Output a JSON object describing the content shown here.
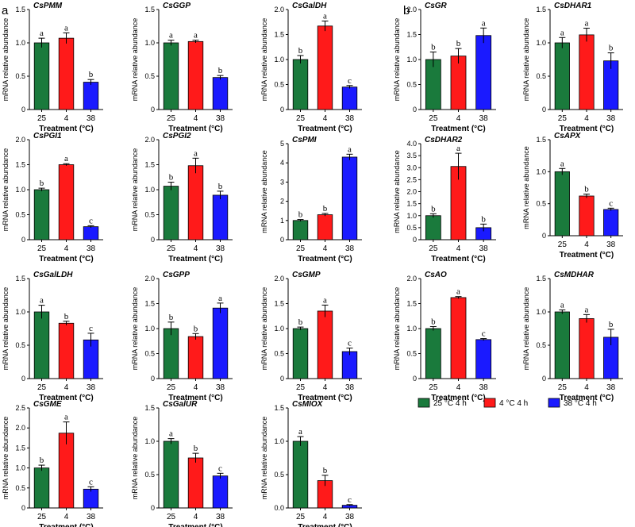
{
  "panel_labels": {
    "a": "a",
    "b": "b"
  },
  "legend": [
    {
      "label": "25 °C 4 h",
      "color": "#1a7a3c"
    },
    {
      "label": "4 °C 4 h",
      "color": "#ff1a1a"
    },
    {
      "label": "38 °C 4 h",
      "color": "#1a1aff"
    }
  ],
  "chart_data": [
    {
      "id": "CsPMM",
      "type": "bar",
      "title": "CsPMM",
      "categories": [
        "25",
        "4",
        "38"
      ],
      "values": [
        1.0,
        1.07,
        0.41
      ],
      "errors": [
        0.07,
        0.08,
        0.04
      ],
      "letters": [
        "a",
        "a",
        "b"
      ],
      "ylim": [
        0,
        1.5
      ],
      "yticks": [
        "0",
        "0.5",
        "1.0",
        "1.5"
      ],
      "xlabel": "Treatment (°C)",
      "ylabel": "mRNA relative abundance"
    },
    {
      "id": "CsGGP",
      "type": "bar",
      "title": "CsGGP",
      "categories": [
        "25",
        "4",
        "38"
      ],
      "values": [
        1.0,
        1.02,
        0.48
      ],
      "errors": [
        0.04,
        0.02,
        0.03
      ],
      "letters": [
        "a",
        "a",
        "b"
      ],
      "ylim": [
        0,
        1.5
      ],
      "yticks": [
        "0",
        "0.5",
        "1.0",
        "1.5"
      ],
      "xlabel": "Treatment (°C)",
      "ylabel": "mRNA relative abundance"
    },
    {
      "id": "CsGalDH",
      "type": "bar",
      "title": "CsGalDH",
      "categories": [
        "25",
        "4",
        "38"
      ],
      "values": [
        1.0,
        1.67,
        0.45
      ],
      "errors": [
        0.08,
        0.1,
        0.03
      ],
      "letters": [
        "b",
        "a",
        "c"
      ],
      "ylim": [
        0,
        2.0
      ],
      "yticks": [
        "0",
        "0.5",
        "1.0",
        "1.5",
        "2.0"
      ],
      "xlabel": "Treatment (°C)",
      "ylabel": "mRNA relative abundance"
    },
    {
      "id": "CsGR",
      "type": "bar",
      "title": "CsGR",
      "categories": [
        "25",
        "4",
        "38"
      ],
      "values": [
        1.0,
        1.07,
        1.48
      ],
      "errors": [
        0.15,
        0.15,
        0.15
      ],
      "letters": [
        "b",
        "b",
        "a"
      ],
      "ylim": [
        0,
        2.0
      ],
      "yticks": [
        "0",
        "0.5",
        "1.0",
        "1.5",
        "2.0"
      ],
      "xlabel": "Treatment (°C)",
      "ylabel": "mRNA relative abundance"
    },
    {
      "id": "CsDHAR1",
      "type": "bar",
      "title": "CsDHAR1",
      "categories": [
        "25",
        "4",
        "38"
      ],
      "values": [
        1.0,
        1.12,
        0.73
      ],
      "errors": [
        0.08,
        0.1,
        0.12
      ],
      "letters": [
        "a",
        "a",
        "b"
      ],
      "ylim": [
        0,
        1.5
      ],
      "yticks": [
        "0",
        "0.5",
        "1.0",
        "1.5"
      ],
      "xlabel": "Treatment (°C)",
      "ylabel": "mRNA relative abundance"
    },
    {
      "id": "CsPGI1",
      "type": "bar",
      "title": "CsPGI1",
      "categories": [
        "25",
        "4",
        "38"
      ],
      "values": [
        1.0,
        1.5,
        0.26
      ],
      "errors": [
        0.03,
        0.02,
        0.02
      ],
      "letters": [
        "b",
        "a",
        "c"
      ],
      "ylim": [
        0,
        2.0
      ],
      "yticks": [
        "0",
        "0.5",
        "1.0",
        "1.5",
        "2.0"
      ],
      "xlabel": "Treatment (°C)",
      "ylabel": "mRNA relative abundance"
    },
    {
      "id": "CsPGI2",
      "type": "bar",
      "title": "CsPGI2",
      "categories": [
        "25",
        "4",
        "38"
      ],
      "values": [
        1.07,
        1.48,
        0.89
      ],
      "errors": [
        0.08,
        0.15,
        0.08
      ],
      "letters": [
        "b",
        "a",
        "b"
      ],
      "ylim": [
        0,
        2.0
      ],
      "yticks": [
        "0",
        "0.5",
        "1.0",
        "1.5",
        "2.0"
      ],
      "xlabel": "Treatment (°C)",
      "ylabel": "mRNA relative abundance"
    },
    {
      "id": "CsPMI",
      "type": "bar",
      "title": "CsPMI",
      "categories": [
        "25",
        "4",
        "38"
      ],
      "values": [
        1.0,
        1.3,
        4.3
      ],
      "errors": [
        0.05,
        0.07,
        0.15
      ],
      "letters": [
        "b",
        "b",
        "a"
      ],
      "ylim": [
        0,
        5
      ],
      "yticks": [
        "0",
        "1",
        "2",
        "3",
        "4",
        "5"
      ],
      "xlabel": "Treatment (°C)",
      "ylabel": "mRNA relative abundance"
    },
    {
      "id": "CsDHAR2",
      "type": "bar",
      "title": "CsDHAR2",
      "categories": [
        "25",
        "4",
        "38"
      ],
      "values": [
        1.0,
        3.05,
        0.5
      ],
      "errors": [
        0.08,
        0.55,
        0.15
      ],
      "letters": [
        "b",
        "a",
        "b"
      ],
      "ylim": [
        0,
        4.0
      ],
      "yticks": [
        "0",
        "0.5",
        "1.0",
        "1.5",
        "2.0",
        "2.5",
        "3.0",
        "3.5",
        "4.0"
      ],
      "xlabel": "Treatment (°C)",
      "ylabel": "mRNA relative abundance"
    },
    {
      "id": "CsAPX",
      "type": "bar",
      "title": "CsAPX",
      "categories": [
        "25",
        "4",
        "38"
      ],
      "values": [
        1.0,
        0.62,
        0.41
      ],
      "errors": [
        0.05,
        0.03,
        0.02
      ],
      "letters": [
        "a",
        "b",
        "c"
      ],
      "ylim": [
        0,
        1.5
      ],
      "yticks": [
        "0",
        "0.5",
        "1.0",
        "1.5"
      ],
      "xlabel": "Treatment (°C)",
      "ylabel": "mRNA relative abundance"
    },
    {
      "id": "CsGalLDH",
      "type": "bar",
      "title": "CsGalLDH",
      "categories": [
        "25",
        "4",
        "38"
      ],
      "values": [
        1.0,
        0.83,
        0.58
      ],
      "errors": [
        0.1,
        0.03,
        0.1
      ],
      "letters": [
        "a",
        "b",
        "c"
      ],
      "ylim": [
        0,
        1.5
      ],
      "yticks": [
        "0",
        "0.5",
        "1.0",
        "1.5"
      ],
      "xlabel": "Treatment (°C)",
      "ylabel": "mRNA relative abundance"
    },
    {
      "id": "CsGPP",
      "type": "bar",
      "title": "CsGPP",
      "categories": [
        "25",
        "4",
        "38"
      ],
      "values": [
        1.0,
        0.84,
        1.41
      ],
      "errors": [
        0.13,
        0.06,
        0.1
      ],
      "letters": [
        "b",
        "b",
        "a"
      ],
      "ylim": [
        0,
        2.0
      ],
      "yticks": [
        "0",
        "0.5",
        "1.0",
        "1.5",
        "2.0"
      ],
      "xlabel": "Treatment (°C)",
      "ylabel": "mRNA relative abundance"
    },
    {
      "id": "CsGMP",
      "type": "bar",
      "title": "CsGMP",
      "categories": [
        "25",
        "4",
        "38"
      ],
      "values": [
        1.0,
        1.35,
        0.54
      ],
      "errors": [
        0.03,
        0.12,
        0.07
      ],
      "letters": [
        "b",
        "a",
        "c"
      ],
      "ylim": [
        0,
        2.0
      ],
      "yticks": [
        "0",
        "0.5",
        "1.0",
        "1.5",
        "2.0"
      ],
      "xlabel": "Treatment (°C)",
      "ylabel": "mRNA relative abundance"
    },
    {
      "id": "CsAO",
      "type": "bar",
      "title": "CsAO",
      "categories": [
        "25",
        "4",
        "38"
      ],
      "values": [
        1.0,
        1.62,
        0.78
      ],
      "errors": [
        0.04,
        0.02,
        0.02
      ],
      "letters": [
        "b",
        "a",
        "c"
      ],
      "ylim": [
        0,
        2.0
      ],
      "yticks": [
        "0",
        "0.5",
        "1.0",
        "1.5",
        "2.0"
      ],
      "xlabel": "Treatment (°C)",
      "ylabel": "mRNA relative abundance"
    },
    {
      "id": "CsMDHAR",
      "type": "bar",
      "title": "CsMDHAR",
      "categories": [
        "25",
        "4",
        "38"
      ],
      "values": [
        1.0,
        0.9,
        0.62
      ],
      "errors": [
        0.03,
        0.06,
        0.12
      ],
      "letters": [
        "a",
        "a",
        "b"
      ],
      "ylim": [
        0,
        1.5
      ],
      "yticks": [
        "0",
        "0.5",
        "1.0",
        "1.5"
      ],
      "xlabel": "Treatment (°C)",
      "ylabel": "mRNA relative abundance"
    },
    {
      "id": "CsGME",
      "type": "bar",
      "title": "CsGME",
      "categories": [
        "25",
        "4",
        "38"
      ],
      "values": [
        1.0,
        1.87,
        0.47
      ],
      "errors": [
        0.07,
        0.28,
        0.06
      ],
      "letters": [
        "b",
        "a",
        "c"
      ],
      "ylim": [
        0,
        2.5
      ],
      "yticks": [
        "0",
        "0.5",
        "1.0",
        "1.5",
        "2.0",
        "2.5"
      ],
      "xlabel": "Treatment (°C)",
      "ylabel": "mRNA relative abundance"
    },
    {
      "id": "CsGalUR",
      "type": "bar",
      "title": "CsGalUR",
      "categories": [
        "25",
        "4",
        "38"
      ],
      "values": [
        1.0,
        0.75,
        0.48
      ],
      "errors": [
        0.04,
        0.07,
        0.04
      ],
      "letters": [
        "a",
        "b",
        "c"
      ],
      "ylim": [
        0,
        1.5
      ],
      "yticks": [
        "0",
        "0.5",
        "1.0",
        "1.5"
      ],
      "xlabel": "Treatment (°C)",
      "ylabel": "mRNA relative abundance"
    },
    {
      "id": "CsMIOX",
      "type": "bar",
      "title": "CsMIOX",
      "categories": [
        "25",
        "4",
        "38"
      ],
      "values": [
        1.0,
        0.41,
        0.04
      ],
      "errors": [
        0.07,
        0.08,
        0.01
      ],
      "letters": [
        "a",
        "b",
        "c"
      ],
      "ylim": [
        0,
        1.5
      ],
      "yticks": [
        "0.0",
        "0.5",
        "1.0",
        "1.5"
      ],
      "xlabel": "Treatment (°C)",
      "ylabel": "mRNA relative abundance"
    }
  ]
}
